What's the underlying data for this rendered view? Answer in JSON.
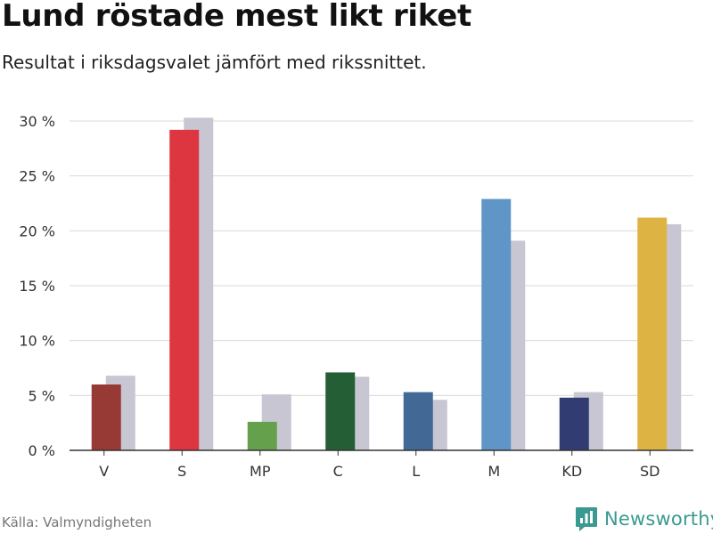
{
  "header": {
    "title": "Lund röstade mest likt riket",
    "subtitle": "Resultat i riksdagsvalet jämfört med rikssnittet."
  },
  "footer": {
    "source": "Källa: Valmyndigheten",
    "brand": "Newsworthy",
    "brand_color": "#3a9a92"
  },
  "chart_data": {
    "type": "bar",
    "categories": [
      "V",
      "S",
      "MP",
      "C",
      "L",
      "M",
      "KD",
      "SD"
    ],
    "series": [
      {
        "values": [
          6.0,
          29.2,
          2.6,
          7.1,
          5.3,
          22.9,
          4.8,
          21.2
        ],
        "colors": [
          "#973a36",
          "#dd3640",
          "#65a04d",
          "#245e34",
          "#426996",
          "#6096c7",
          "#313c72",
          "#ddb443"
        ]
      },
      {
        "values": [
          6.8,
          30.3,
          5.1,
          6.7,
          4.6,
          19.1,
          5.3,
          20.6
        ],
        "color": "#c7c6d2"
      }
    ],
    "yticks": [
      "0 %",
      "5 %",
      "10 %",
      "15 %",
      "20 %",
      "25 %",
      "30 %"
    ],
    "ylim": [
      0,
      30
    ],
    "grid": true
  }
}
